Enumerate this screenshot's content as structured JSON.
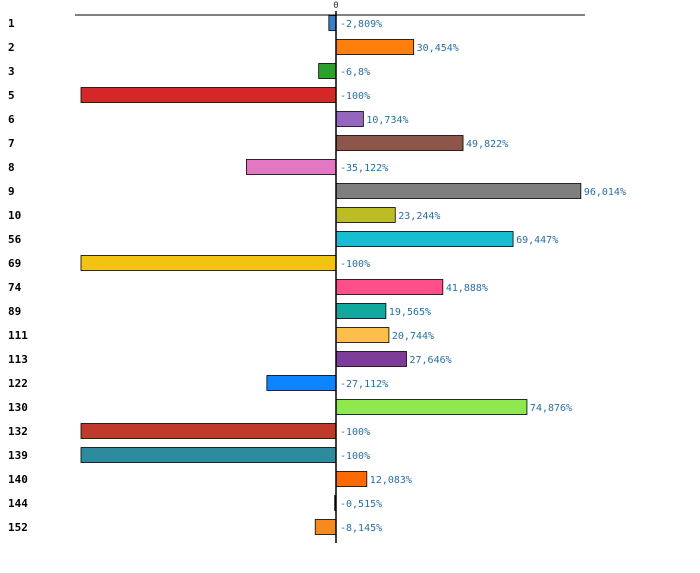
{
  "chart_data": {
    "type": "bar",
    "orientation": "horizontal",
    "title": "",
    "xlabel": "",
    "ylabel": "",
    "xlim": [
      -100,
      96.014
    ],
    "zero_tick_label": "0",
    "categories": [
      "1",
      "2",
      "3",
      "5",
      "6",
      "7",
      "8",
      "9",
      "10",
      "56",
      "69",
      "74",
      "89",
      "111",
      "113",
      "122",
      "130",
      "132",
      "139",
      "140",
      "144",
      "152"
    ],
    "values": [
      -2.809,
      30.454,
      -6.8,
      -100,
      10.734,
      49.822,
      -35.122,
      96.014,
      23.244,
      69.447,
      -100,
      41.888,
      19.565,
      20.744,
      27.646,
      -27.112,
      74.876,
      -100,
      -100,
      12.083,
      -0.515,
      -8.145
    ],
    "value_labels": [
      "-2,809%",
      "30,454%",
      "-6,8%",
      "-100%",
      "10,734%",
      "49,822%",
      "-35,122%",
      "96,014%",
      "23,244%",
      "69,447%",
      "-100%",
      "41,888%",
      "19,565%",
      "20,744%",
      "27,646%",
      "-27,112%",
      "74,876%",
      "-100%",
      "-100%",
      "12,083%",
      "-0,515%",
      "-8,145%"
    ],
    "colors": [
      "#3a7fc4",
      "#ff7f0e",
      "#2ca02c",
      "#d62728",
      "#9467bd",
      "#8c564b",
      "#e377c2",
      "#7f7f7f",
      "#bcbd22",
      "#17becf",
      "#f1c40f",
      "#ff4f8b",
      "#11a89e",
      "#fbbf4a",
      "#7d3c98",
      "#0a84ff",
      "#8ee84e",
      "#c0392b",
      "#2e8b9e",
      "#ff6a00",
      "#1a1a1a",
      "#f58a1f"
    ]
  }
}
